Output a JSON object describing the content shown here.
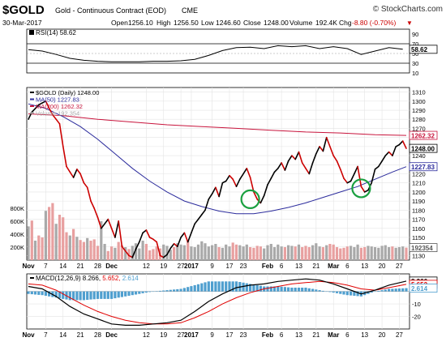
{
  "header": {
    "symbol": "$GOLD",
    "description": "Gold - Continuous Contract (EOD)",
    "exchange": "CME",
    "watermark": "© StockCharts.com",
    "date": "30-Mar-2017",
    "ohlc": {
      "open_label": "Open",
      "open": "1256.10",
      "high_label": "High",
      "high": "1256.50",
      "low_label": "Low",
      "low": "1246.60",
      "close_label": "Close",
      "close": "1248.00",
      "volume_label": "Volume",
      "volume": "192.4K",
      "chg_label": "Chg",
      "chg": "-8.80 (-0.70%)",
      "chg_arrow": "▼"
    }
  },
  "colors": {
    "price_up": "#000000",
    "price_down": "#cc0000",
    "ma50": "#2b2b9c",
    "ma200": "#c8143c",
    "rsi": "#000000",
    "volume_up": "#a9a9a9",
    "volume_down": "#e8a0a0",
    "macd": "#000000",
    "signal": "#e00000",
    "histogram": "#4f9fcf",
    "highlight_circle": "#1aa040",
    "grid": "#e4e4e4"
  },
  "chart_data": [
    {
      "type": "line",
      "panel": "rsi",
      "legend": "RSI(14) 58.62",
      "label_value": "58.62",
      "ylim": [
        10,
        100
      ],
      "y_ticks": [
        90,
        70,
        50,
        30,
        10
      ],
      "reference_lines": [
        70,
        30
      ],
      "series": [
        {
          "name": "RSI(14)",
          "x": [
            0,
            4,
            8,
            12,
            16,
            20,
            24,
            28,
            32,
            36,
            40,
            44,
            48,
            52,
            56,
            60,
            64,
            68,
            72,
            76,
            80,
            84,
            88,
            92,
            96,
            100,
            104,
            108
          ],
          "values": [
            58,
            55,
            48,
            40,
            36,
            34,
            33,
            33,
            33,
            34,
            34,
            35,
            38,
            46,
            56,
            62,
            63,
            60,
            66,
            64,
            66,
            60,
            64,
            60,
            48,
            55,
            62,
            58.62
          ]
        }
      ]
    },
    {
      "type": "line",
      "panel": "price",
      "legend": [
        {
          "label": "$GOLD (Daily) 1248.00",
          "color": "price_up"
        },
        {
          "label": "MA(50) 1227.83",
          "color": "ma50"
        },
        {
          "label": "MA(200) 1262.32",
          "color": "ma200"
        },
        {
          "label": "Volume 192,354",
          "color": "volume_up"
        }
      ],
      "ylim": [
        1125,
        1315
      ],
      "y_ticks": [
        1310,
        1300,
        1290,
        1280,
        1270,
        1260,
        1250,
        1240,
        1230,
        1220,
        1210,
        1200,
        1190,
        1180,
        1170,
        1160,
        1150,
        1140,
        1130
      ],
      "right_tags": [
        {
          "label": "1262.32",
          "value": 1262.32,
          "color": "ma200"
        },
        {
          "label": "1248.00",
          "value": 1248.0,
          "color": "price_up"
        },
        {
          "label": "1227.83",
          "value": 1227.83,
          "color": "ma50"
        }
      ],
      "volume_axis": {
        "labels": [
          "800K",
          "600K",
          "400K",
          "200K"
        ],
        "values": [
          800,
          600,
          400,
          200
        ],
        "max": 1000
      },
      "volume_tag": "192354",
      "x_ticks": [
        {
          "label": "Nov",
          "x": 0,
          "bold": true
        },
        {
          "label": "7",
          "x": 5
        },
        {
          "label": "14",
          "x": 10
        },
        {
          "label": "21",
          "x": 15
        },
        {
          "label": "28",
          "x": 20
        },
        {
          "label": "Dec",
          "x": 24,
          "bold": true
        },
        {
          "label": "12",
          "x": 34
        },
        {
          "label": "19",
          "x": 39
        },
        {
          "label": "27",
          "x": 44
        },
        {
          "label": "2017",
          "x": 47,
          "bold": true
        },
        {
          "label": "9",
          "x": 53
        },
        {
          "label": "17",
          "x": 58
        },
        {
          "label": "23",
          "x": 62
        },
        {
          "label": "Feb",
          "x": 69,
          "bold": true
        },
        {
          "label": "6",
          "x": 73
        },
        {
          "label": "13",
          "x": 78
        },
        {
          "label": "21",
          "x": 83
        },
        {
          "label": "Mar",
          "x": 88,
          "bold": true
        },
        {
          "label": "6",
          "x": 92
        },
        {
          "label": "13",
          "x": 97
        },
        {
          "label": "20",
          "x": 102
        },
        {
          "label": "27",
          "x": 107
        }
      ],
      "series": [
        {
          "name": "$GOLD (Daily)",
          "x": [
            0,
            1,
            2,
            3,
            4,
            5,
            6,
            7,
            8,
            9,
            10,
            11,
            12,
            13,
            14,
            15,
            16,
            17,
            18,
            19,
            20,
            21,
            22,
            23,
            24,
            25,
            26,
            27,
            28,
            29,
            30,
            31,
            32,
            33,
            34,
            35,
            36,
            37,
            38,
            39,
            40,
            41,
            42,
            43,
            44,
            45,
            46,
            47,
            48,
            49,
            50,
            51,
            52,
            53,
            54,
            55,
            56,
            57,
            58,
            59,
            60,
            61,
            62,
            63,
            64,
            65,
            66,
            67,
            68,
            69,
            70,
            71,
            72,
            73,
            74,
            75,
            76,
            77,
            78,
            79,
            80,
            81,
            82,
            83,
            84,
            85,
            86,
            87,
            88,
            89,
            90,
            91,
            92,
            93,
            94,
            95,
            96,
            97,
            98,
            99,
            100,
            101,
            102,
            103,
            104,
            105,
            106,
            107,
            108,
            109
          ],
          "values": [
            1280,
            1288,
            1292,
            1296,
            1298,
            1300,
            1292,
            1285,
            1280,
            1275,
            1250,
            1228,
            1222,
            1216,
            1225,
            1220,
            1210,
            1205,
            1190,
            1182,
            1172,
            1160,
            1165,
            1170,
            1160,
            1150,
            1168,
            1140,
            1135,
            1130,
            1128,
            1137,
            1145,
            1155,
            1158,
            1150,
            1148,
            1145,
            1130,
            1128,
            1131,
            1138,
            1143,
            1140,
            1150,
            1155,
            1145,
            1155,
            1165,
            1170,
            1175,
            1180,
            1192,
            1198,
            1205,
            1195,
            1210,
            1212,
            1218,
            1214,
            1206,
            1214,
            1220,
            1226,
            1216,
            1200,
            1192,
            1188,
            1196,
            1208,
            1215,
            1222,
            1226,
            1232,
            1224,
            1234,
            1240,
            1236,
            1244,
            1232,
            1226,
            1220,
            1232,
            1242,
            1250,
            1245,
            1260,
            1250,
            1240,
            1234,
            1225,
            1215,
            1210,
            1212,
            1220,
            1228,
            1206,
            1200,
            1202,
            1210,
            1225,
            1228,
            1234,
            1240,
            1244,
            1240,
            1250,
            1252,
            1256,
            1248
          ]
        },
        {
          "name": "MA(50)",
          "x": [
            0,
            5,
            10,
            15,
            20,
            25,
            30,
            35,
            40,
            45,
            50,
            55,
            60,
            65,
            70,
            75,
            80,
            85,
            90,
            95,
            100,
            105,
            109
          ],
          "values": [
            1297,
            1292,
            1283,
            1272,
            1258,
            1242,
            1226,
            1212,
            1200,
            1190,
            1184,
            1179,
            1176,
            1176,
            1179,
            1183,
            1188,
            1194,
            1200,
            1206,
            1214,
            1222,
            1227.83
          ]
        },
        {
          "name": "MA(200)",
          "x": [
            0,
            10,
            20,
            30,
            40,
            50,
            60,
            70,
            80,
            90,
            100,
            109
          ],
          "values": [
            1286,
            1284,
            1280,
            1277,
            1274,
            1272,
            1270,
            1268,
            1266,
            1265,
            1263,
            1262.32
          ]
        }
      ],
      "volume": {
        "values": [
          520,
          610,
          300,
          380,
          350,
          760,
          820,
          880,
          560,
          700,
          660,
          430,
          380,
          480,
          360,
          310,
          280,
          340,
          300,
          320,
          220,
          600,
          250,
          140,
          210,
          190,
          280,
          230,
          200,
          170,
          220,
          260,
          180,
          300,
          250,
          150,
          170,
          210,
          180,
          240,
          220,
          160,
          200,
          260,
          240,
          230,
          300,
          210,
          200,
          240,
          290,
          260,
          210,
          230,
          250,
          200,
          190,
          240,
          210,
          270,
          240,
          230,
          210,
          240,
          200,
          190,
          220,
          210,
          180,
          230,
          250,
          200,
          240,
          210,
          200,
          230,
          220,
          210,
          240,
          200,
          220,
          200,
          230,
          260,
          210,
          200,
          230,
          250,
          240,
          200,
          180,
          190,
          210,
          220,
          200,
          240,
          190,
          200,
          220,
          210,
          200,
          190,
          220,
          230,
          200,
          210,
          190,
          200,
          210,
          192
        ],
        "down": [
          false,
          true,
          false,
          true,
          true,
          false,
          true,
          true,
          false,
          true,
          true,
          true,
          false,
          true,
          false,
          true,
          true,
          false,
          true,
          true,
          true,
          false,
          false,
          true,
          true,
          false,
          true,
          true,
          false,
          true,
          false,
          false,
          false,
          false,
          true,
          true,
          true,
          true,
          true,
          false,
          false,
          false,
          true,
          false,
          false,
          false,
          true,
          false,
          false,
          false,
          false,
          false,
          false,
          false,
          false,
          true,
          false,
          false,
          false,
          true,
          true,
          false,
          false,
          false,
          true,
          true,
          true,
          true,
          false,
          false,
          false,
          false,
          false,
          false,
          true,
          false,
          false,
          true,
          false,
          true,
          true,
          true,
          false,
          false,
          false,
          true,
          false,
          true,
          true,
          true,
          true,
          true,
          true,
          false,
          false,
          false,
          true,
          true,
          false,
          false,
          false,
          false,
          false,
          false,
          false,
          true,
          false,
          false,
          false,
          true
        ]
      },
      "annotations": [
        {
          "type": "circle",
          "x": 64,
          "y": 1192
        },
        {
          "type": "circle",
          "x": 96,
          "y": 1204
        }
      ]
    },
    {
      "type": "line",
      "panel": "macd",
      "legend": "MACD(12,26,9) 8.266, 5.652, 2.614",
      "legend_parts": {
        "name": "MACD(12,26,9)",
        "macd": "8.266",
        "signal": "5.652",
        "hist": "2.614"
      },
      "ylim": [
        -30,
        14
      ],
      "y_ticks": [
        {
          "label": "-10",
          "value": -10
        },
        {
          "label": "-20",
          "value": -20
        }
      ],
      "right_tags": [
        {
          "label": "8.266",
          "value": 8.266,
          "color": "macd"
        },
        {
          "label": "5.652",
          "value": 5.652,
          "color": "signal"
        },
        {
          "label": "2.614",
          "value": 2.614,
          "color": "histogram"
        }
      ],
      "x_ticks": [
        {
          "label": "Nov",
          "x": 0,
          "bold": true
        },
        {
          "label": "7",
          "x": 5
        },
        {
          "label": "14",
          "x": 10
        },
        {
          "label": "21",
          "x": 15
        },
        {
          "label": "28",
          "x": 20
        },
        {
          "label": "Dec",
          "x": 24,
          "bold": true
        },
        {
          "label": "12",
          "x": 34
        },
        {
          "label": "19",
          "x": 39
        },
        {
          "label": "27",
          "x": 44
        },
        {
          "label": "2017",
          "x": 47,
          "bold": true
        },
        {
          "label": "9",
          "x": 53
        },
        {
          "label": "17",
          "x": 58
        },
        {
          "label": "23",
          "x": 62
        },
        {
          "label": "Feb",
          "x": 69,
          "bold": true
        },
        {
          "label": "6",
          "x": 73
        },
        {
          "label": "13",
          "x": 78
        },
        {
          "label": "21",
          "x": 83
        },
        {
          "label": "Mar",
          "x": 88,
          "bold": true
        },
        {
          "label": "6",
          "x": 92
        },
        {
          "label": "13",
          "x": 97
        },
        {
          "label": "20",
          "x": 102
        },
        {
          "label": "27",
          "x": 107
        }
      ],
      "series": [
        {
          "name": "MACD",
          "x": [
            0,
            4,
            8,
            12,
            16,
            20,
            24,
            28,
            32,
            36,
            40,
            44,
            48,
            52,
            56,
            60,
            64,
            68,
            72,
            76,
            80,
            84,
            88,
            92,
            96,
            100,
            104,
            109
          ],
          "values": [
            4,
            2,
            -4,
            -12,
            -18,
            -22,
            -26,
            -27,
            -27,
            -26,
            -25,
            -23,
            -16,
            -8,
            -2,
            3,
            5,
            6,
            8,
            9,
            10,
            9,
            6,
            2,
            -2,
            1,
            5,
            8.266
          ]
        },
        {
          "name": "Signal",
          "x": [
            0,
            4,
            8,
            12,
            16,
            20,
            24,
            28,
            32,
            36,
            40,
            44,
            48,
            52,
            56,
            60,
            64,
            68,
            72,
            76,
            80,
            84,
            88,
            92,
            96,
            100,
            104,
            109
          ],
          "values": [
            6,
            5,
            1,
            -5,
            -11,
            -16,
            -20,
            -23,
            -25,
            -26,
            -26,
            -25,
            -21,
            -16,
            -10,
            -5,
            -1,
            2,
            4,
            6,
            7,
            8,
            7,
            5,
            2,
            1,
            3,
            5.652
          ]
        }
      ]
    }
  ]
}
